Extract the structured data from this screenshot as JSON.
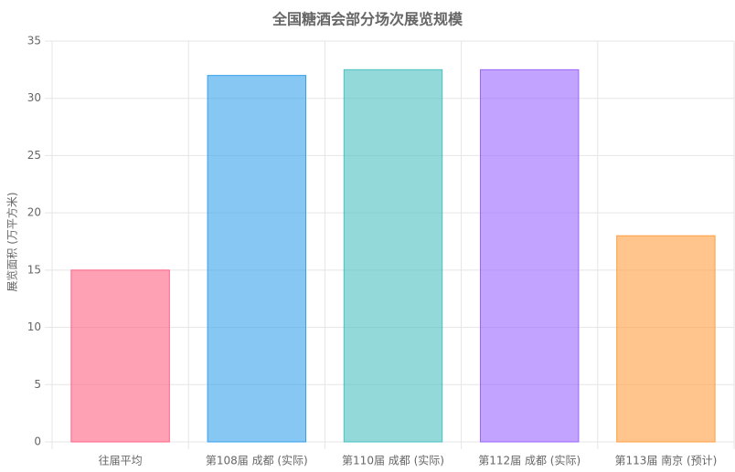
{
  "chart_data": {
    "type": "bar",
    "title": "全国糖酒会部分场次展览规模",
    "y_label": "展览面积 (万平方米)",
    "categories": [
      "往届平均",
      "第108届 成都 (实际)",
      "第110届 成都 (实际)",
      "第112届 成都 (实际)",
      "第113届 南京 (预计)"
    ],
    "values": [
      15,
      32,
      32.5,
      32.5,
      18
    ],
    "colors": [
      "#ff6384",
      "#36a2eb",
      "#4bc0c0",
      "#9966ff",
      "#ff9f40"
    ],
    "ylim": [
      0,
      35
    ],
    "yticks": [
      0,
      5,
      10,
      15,
      20,
      25,
      30,
      35
    ],
    "grid": true
  }
}
